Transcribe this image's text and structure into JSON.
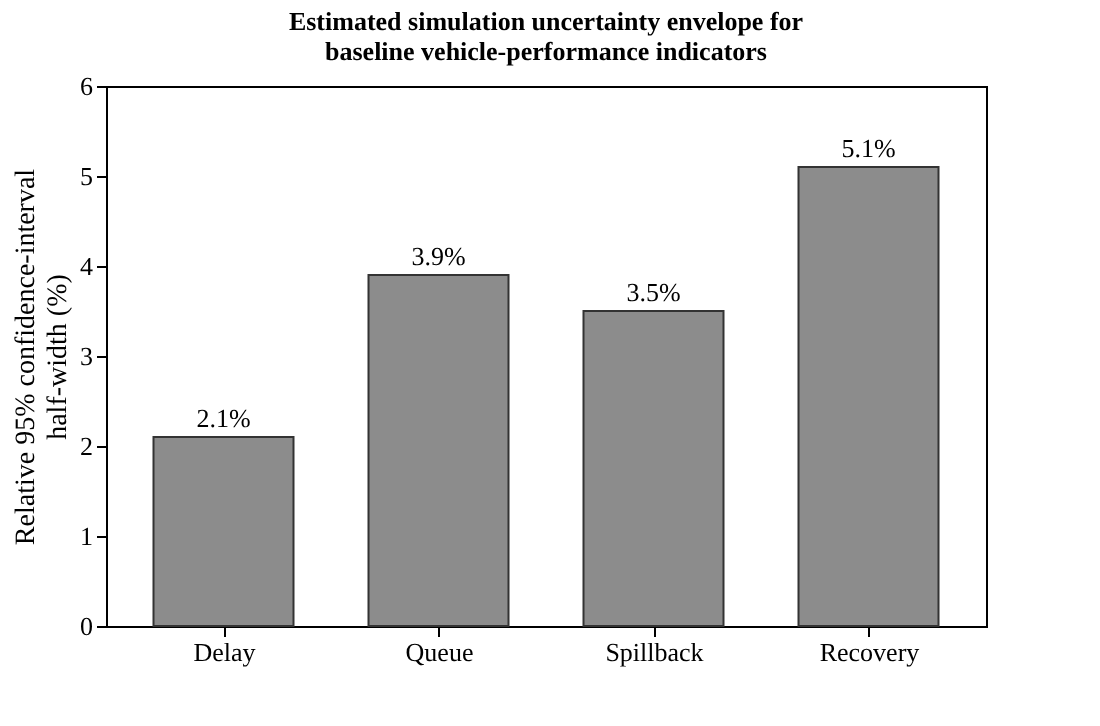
{
  "chart_data": {
    "type": "bar",
    "title": "Estimated simulation uncertainty envelope for\nbaseline vehicle-performance indicators",
    "ylabel": "Relative 95% confidence-interval\nhalf-width (%)",
    "categories": [
      "Delay",
      "Queue",
      "Spillback",
      "Recovery"
    ],
    "values": [
      2.1,
      3.9,
      3.5,
      5.1
    ],
    "value_labels": [
      "2.1%",
      "3.9%",
      "3.5%",
      "5.1%"
    ],
    "color": "#8c8c8c",
    "ylim": [
      0,
      6
    ],
    "yticks": [
      0,
      1,
      2,
      3,
      4,
      5,
      6
    ],
    "grid": false
  }
}
